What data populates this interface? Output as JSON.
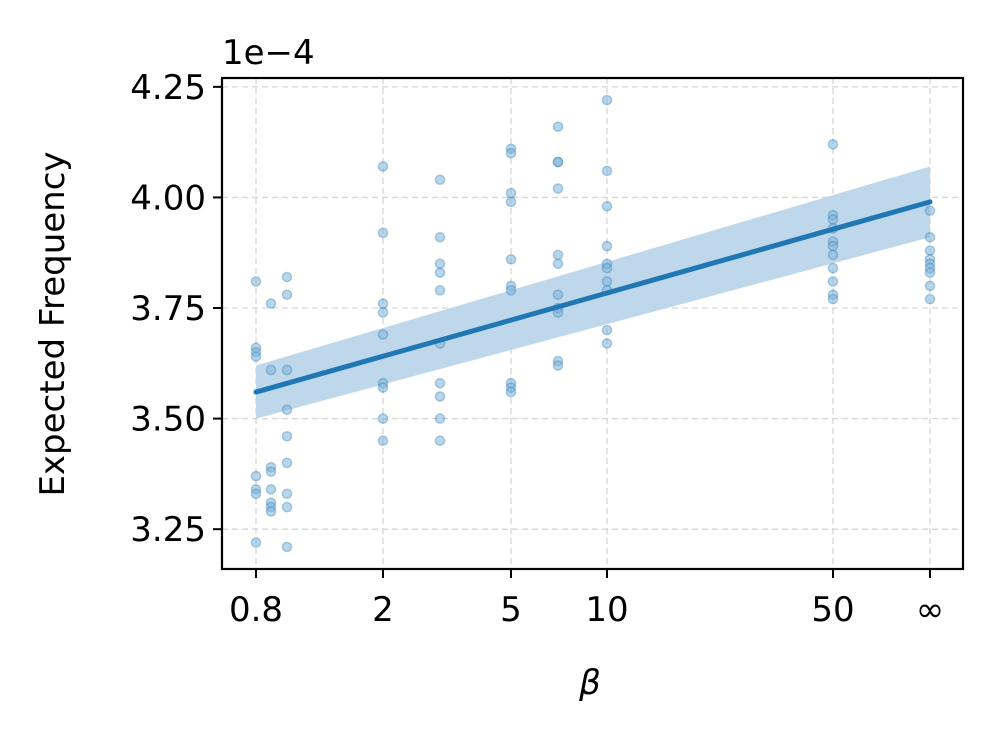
{
  "chart_data": {
    "type": "scatter",
    "title": "",
    "xlabel": "β",
    "ylabel": "Expected Frequency",
    "y_offset_text": "1e−4",
    "x_ticks": [
      {
        "value": 0.8,
        "label": "0.8"
      },
      {
        "value": 2,
        "label": "2"
      },
      {
        "value": 5,
        "label": "5"
      },
      {
        "value": 10,
        "label": "10"
      },
      {
        "value": 50,
        "label": "50"
      },
      {
        "value": "inf",
        "label": "∞"
      }
    ],
    "y_ticks": [
      {
        "value": 3.25,
        "label": "3.25"
      },
      {
        "value": 3.5,
        "label": "3.50"
      },
      {
        "value": 3.75,
        "label": "3.75"
      },
      {
        "value": 4.0,
        "label": "4.00"
      },
      {
        "value": 4.25,
        "label": "4.25"
      }
    ],
    "ylim": [
      3.16,
      4.27
    ],
    "grid": true,
    "colors": {
      "points": "#7fb2d9",
      "line": "#1f77b4",
      "band": "#bcd5ea"
    },
    "points": [
      {
        "x": 0.8,
        "y": [
          3.81,
          3.66,
          3.65,
          3.64,
          3.37,
          3.34,
          3.33,
          3.22
        ]
      },
      {
        "x": 0.9,
        "y": [
          3.76,
          3.61,
          3.39,
          3.38,
          3.34,
          3.31,
          3.3,
          3.29
        ]
      },
      {
        "x": 1.0,
        "y": [
          3.82,
          3.78,
          3.61,
          3.52,
          3.46,
          3.4,
          3.33,
          3.3,
          3.21
        ]
      },
      {
        "x": 2,
        "y": [
          4.07,
          3.92,
          3.76,
          3.74,
          3.69,
          3.58,
          3.57,
          3.5,
          3.45
        ]
      },
      {
        "x": 3,
        "y": [
          4.04,
          3.91,
          3.85,
          3.83,
          3.79,
          3.67,
          3.58,
          3.55,
          3.5,
          3.45
        ]
      },
      {
        "x": 5,
        "y": [
          4.11,
          4.1,
          4.01,
          3.99,
          3.86,
          3.8,
          3.79,
          3.58,
          3.57,
          3.56
        ]
      },
      {
        "x": 7,
        "y": [
          4.16,
          4.08,
          4.08,
          4.02,
          3.87,
          3.85,
          3.78,
          3.75,
          3.74,
          3.63,
          3.62
        ]
      },
      {
        "x": 10,
        "y": [
          4.22,
          4.06,
          3.98,
          3.89,
          3.85,
          3.84,
          3.81,
          3.79,
          3.7,
          3.67
        ]
      },
      {
        "x": 50,
        "y": [
          4.12,
          3.96,
          3.95,
          3.93,
          3.9,
          3.89,
          3.87,
          3.84,
          3.81,
          3.78,
          3.77
        ]
      },
      {
        "x": "inf",
        "y": [
          3.97,
          3.91,
          3.88,
          3.86,
          3.85,
          3.84,
          3.83,
          3.8,
          3.77
        ]
      }
    ],
    "fit_line": {
      "start": [
        0.8,
        3.56
      ],
      "end": [
        "inf",
        3.99
      ]
    },
    "confidence_band": {
      "start": [
        3.5,
        3.62
      ],
      "end": [
        3.91,
        4.07
      ]
    }
  }
}
